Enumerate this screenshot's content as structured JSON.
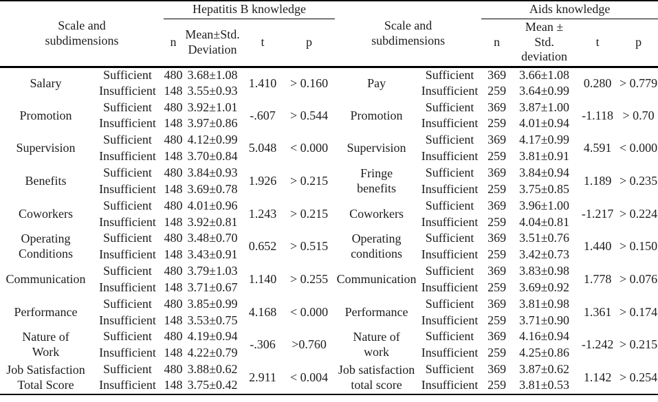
{
  "page": {
    "background": "#ffffff",
    "text_color": "#1c1c1c",
    "border_color": "#000000"
  },
  "header": {
    "scale_label": "Scale and\nsubdimensions",
    "left_group_title": "Hepatitis B knowledge",
    "right_group_title": "Aids knowledge",
    "left_columns": {
      "n": "n",
      "mean": "Mean±Std.\nDeviation",
      "t": "t",
      "p": "p"
    },
    "right_columns": {
      "n": "n",
      "mean": "Mean ±\nStd.\ndeviation",
      "t": "t",
      "p": "p"
    }
  },
  "rows": [
    {
      "left": {
        "scale": "Salary",
        "groups": [
          {
            "label": "Sufficient",
            "n": "480",
            "mean": "3.68±1.08"
          },
          {
            "label": "Insufficient",
            "n": "148",
            "mean": "3.55±0.93"
          }
        ],
        "t": "1.410",
        "p": "> 0.160"
      },
      "right": {
        "scale": "Pay",
        "groups": [
          {
            "label": "Sufficient",
            "n": "369",
            "mean": "3.66±1.08"
          },
          {
            "label": "Insufficient",
            "n": "259",
            "mean": "3.64±0.99"
          }
        ],
        "t": "0.280",
        "p": "> 0.779"
      }
    },
    {
      "left": {
        "scale": "Promotion",
        "groups": [
          {
            "label": "Sufficient",
            "n": "480",
            "mean": "3.92±1.01"
          },
          {
            "label": "Insufficient",
            "n": "148",
            "mean": "3.97±0.86"
          }
        ],
        "t": "-.607",
        "p": "> 0.544"
      },
      "right": {
        "scale": "Promotion",
        "groups": [
          {
            "label": "Sufficient",
            "n": "369",
            "mean": "3.87±1.00"
          },
          {
            "label": "Insufficient",
            "n": "259",
            "mean": "4.01±0.94"
          }
        ],
        "t": "-1.118",
        "p": "> 0.70"
      }
    },
    {
      "left": {
        "scale": "Supervision",
        "groups": [
          {
            "label": "Sufficient",
            "n": "480",
            "mean": "4.12±0.99"
          },
          {
            "label": "Insufficient",
            "n": "148",
            "mean": "3.70±0.84"
          }
        ],
        "t": "5.048",
        "p": "< 0.000"
      },
      "right": {
        "scale": "Supervision",
        "groups": [
          {
            "label": "Sufficient",
            "n": "369",
            "mean": "4.17±0.99"
          },
          {
            "label": "Insufficient",
            "n": "259",
            "mean": "3.81±0.91"
          }
        ],
        "t": "4.591",
        "p": "< 0.000"
      }
    },
    {
      "left": {
        "scale": "Benefits",
        "groups": [
          {
            "label": "Sufficient",
            "n": "480",
            "mean": "3.84±0.93"
          },
          {
            "label": "Insufficient",
            "n": "148",
            "mean": "3.69±0.78"
          }
        ],
        "t": "1.926",
        "p": "> 0.215"
      },
      "right": {
        "scale": "Fringe\nbenefits",
        "groups": [
          {
            "label": "Sufficient",
            "n": "369",
            "mean": "3.84±0.94"
          },
          {
            "label": "Insufficient",
            "n": "259",
            "mean": "3.75±0.85"
          }
        ],
        "t": "1.189",
        "p": "> 0.235"
      }
    },
    {
      "left": {
        "scale": "Coworkers",
        "groups": [
          {
            "label": "Sufficient",
            "n": "480",
            "mean": "4.01±0.96"
          },
          {
            "label": "Insufficient",
            "n": "148",
            "mean": "3.92±0.81"
          }
        ],
        "t": "1.243",
        "p": "> 0.215"
      },
      "right": {
        "scale": "Coworkers",
        "groups": [
          {
            "label": "Sufficient",
            "n": "369",
            "mean": "3.96±1.00"
          },
          {
            "label": "Insufficient",
            "n": "259",
            "mean": "4.04±0.81"
          }
        ],
        "t": "-1.217",
        "p": "> 0.224"
      }
    },
    {
      "left": {
        "scale": "Operating\nConditions",
        "groups": [
          {
            "label": "Sufficient",
            "n": "480",
            "mean": "3.48±0.70"
          },
          {
            "label": "Insufficient",
            "n": "148",
            "mean": "3.43±0.91"
          }
        ],
        "t": "0.652",
        "p": "> 0.515"
      },
      "right": {
        "scale": "Operating\nconditions",
        "groups": [
          {
            "label": "Sufficient",
            "n": "369",
            "mean": "3.51±0.76"
          },
          {
            "label": "Insufficient",
            "n": "259",
            "mean": "3.42±0.73"
          }
        ],
        "t": "1.440",
        "p": "> 0.150"
      }
    },
    {
      "left": {
        "scale": "Communication",
        "groups": [
          {
            "label": "Sufficient",
            "n": "480",
            "mean": "3.79±1.03"
          },
          {
            "label": "Insufficient",
            "n": "148",
            "mean": "3.71±0.67"
          }
        ],
        "t": "1.140",
        "p": "> 0.255"
      },
      "right": {
        "scale": "Communication",
        "groups": [
          {
            "label": "Sufficient",
            "n": "369",
            "mean": "3.83±0.98"
          },
          {
            "label": "Insufficient",
            "n": "259",
            "mean": "3.69±0.92"
          }
        ],
        "t": "1.778",
        "p": "> 0.076"
      }
    },
    {
      "left": {
        "scale": "Performance",
        "groups": [
          {
            "label": "Sufficient",
            "n": "480",
            "mean": "3.85±0.99"
          },
          {
            "label": "Insufficient",
            "n": "148",
            "mean": "3.53±0.75"
          }
        ],
        "t": "4.168",
        "p": "< 0.000"
      },
      "right": {
        "scale": "Performance",
        "groups": [
          {
            "label": "Sufficient",
            "n": "369",
            "mean": "3.81±0.98"
          },
          {
            "label": "Insufficient",
            "n": "259",
            "mean": "3.71±0.90"
          }
        ],
        "t": "1.361",
        "p": "> 0.174"
      }
    },
    {
      "left": {
        "scale": "Nature of\nWork",
        "groups": [
          {
            "label": "Sufficient",
            "n": "480",
            "mean": "4.19±0.94"
          },
          {
            "label": "Insufficient",
            "n": "148",
            "mean": "4.22±0.79"
          }
        ],
        "t": "-.306",
        "p": ">0.760"
      },
      "right": {
        "scale": "Nature of\nwork",
        "groups": [
          {
            "label": "Sufficient",
            "n": "369",
            "mean": "4.16±0.94"
          },
          {
            "label": "Insufficient",
            "n": "259",
            "mean": "4.25±0.86"
          }
        ],
        "t": "-1.242",
        "p": "> 0.215"
      }
    },
    {
      "left": {
        "scale": "Job Satisfaction\nTotal Score",
        "groups": [
          {
            "label": "Sufficient",
            "n": "480",
            "mean": "3.88±0.62"
          },
          {
            "label": "Insufficient",
            "n": "148",
            "mean": "3.75±0.42"
          }
        ],
        "t": "2.911",
        "p": "< 0.004"
      },
      "right": {
        "scale": "Job satisfaction\ntotal score",
        "groups": [
          {
            "label": "Sufficient",
            "n": "369",
            "mean": "3.87±0.62"
          },
          {
            "label": "Insufficient",
            "n": "259",
            "mean": "3.81±0.53"
          }
        ],
        "t": "1.142",
        "p": "> 0.254"
      }
    }
  ]
}
